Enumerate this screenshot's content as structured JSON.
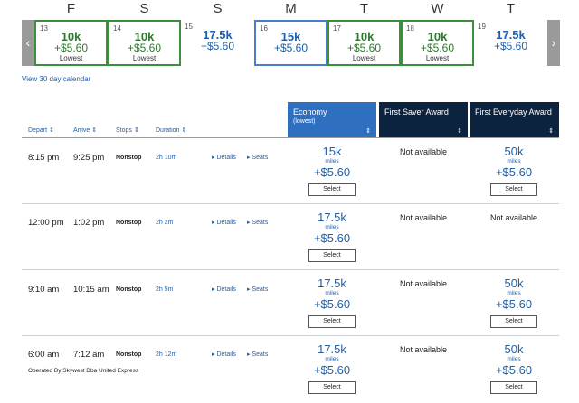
{
  "day_letters": [
    "F",
    "S",
    "S",
    "M",
    "T",
    "W",
    "T"
  ],
  "calendar": [
    {
      "day": "13",
      "miles": "10k",
      "fee": "+$5.60",
      "note": "Lowest",
      "state": "lowest"
    },
    {
      "day": "14",
      "miles": "10k",
      "fee": "+$5.60",
      "note": "Lowest",
      "state": "lowest"
    },
    {
      "day": "15",
      "miles": "17.5k",
      "fee": "+$5.60",
      "note": "",
      "state": "normal"
    },
    {
      "day": "16",
      "miles": "15k",
      "fee": "+$5.60",
      "note": "",
      "state": "selected"
    },
    {
      "day": "17",
      "miles": "10k",
      "fee": "+$5.60",
      "note": "Lowest",
      "state": "lowest"
    },
    {
      "day": "18",
      "miles": "10k",
      "fee": "+$5.60",
      "note": "Lowest",
      "state": "lowest"
    },
    {
      "day": "19",
      "miles": "17.5k",
      "fee": "+$5.60",
      "note": "",
      "state": "normal"
    }
  ],
  "nav": {
    "prev": "‹",
    "next": "›"
  },
  "view_calendar_link": "View 30 day calendar",
  "sort_columns": {
    "depart": "Depart ⇕",
    "arrive": "Arrive ⇕",
    "stops": "Stops ⇕",
    "duration": "Duration ⇕"
  },
  "fare_columns": {
    "economy": {
      "label": "Economy",
      "sub": "(lowest)",
      "caret": "⇕"
    },
    "saver": {
      "label": "First Saver Award",
      "caret": "⇕"
    },
    "everyday": {
      "label": "First Everyday Award",
      "caret": "⇕"
    }
  },
  "flights": [
    {
      "depart": "8:15 pm",
      "arrive": "9:25 pm",
      "stops": "Nonstop",
      "duration": "2h 10m",
      "details": "▸ Details",
      "seats": "▸ Seats",
      "operated": "",
      "economy": {
        "miles": "15k",
        "unit": "miles",
        "fee": "+$5.60",
        "select": "Select"
      },
      "saver": {
        "text": "Not available"
      },
      "everyday": {
        "miles": "50k",
        "unit": "miles",
        "fee": "+$5.60",
        "select": "Select"
      }
    },
    {
      "depart": "12:00 pm",
      "arrive": "1:02 pm",
      "stops": "Nonstop",
      "duration": "2h 2m",
      "details": "▸ Details",
      "seats": "▸ Seats",
      "operated": "",
      "economy": {
        "miles": "17.5k",
        "unit": "miles",
        "fee": "+$5.60",
        "select": "Select"
      },
      "saver": {
        "text": "Not available"
      },
      "everyday": {
        "text": "Not available"
      }
    },
    {
      "depart": "9:10 am",
      "arrive": "10:15 am",
      "stops": "Nonstop",
      "duration": "2h 5m",
      "details": "▸ Details",
      "seats": "▸ Seats",
      "operated": "",
      "economy": {
        "miles": "17.5k",
        "unit": "miles",
        "fee": "+$5.60",
        "select": "Select"
      },
      "saver": {
        "text": "Not available"
      },
      "everyday": {
        "miles": "50k",
        "unit": "miles",
        "fee": "+$5.60",
        "select": "Select"
      }
    },
    {
      "depart": "6:00 am",
      "arrive": "7:12 am",
      "stops": "Nonstop",
      "duration": "2h 12m",
      "details": "▸ Details",
      "seats": "▸ Seats",
      "operated": "Operated By Skywest Dba United Express",
      "economy": {
        "miles": "17.5k",
        "unit": "miles",
        "fee": "+$5.60",
        "select": "Select"
      },
      "saver": {
        "text": "Not available"
      },
      "everyday": {
        "miles": "50k",
        "unit": "miles",
        "fee": "+$5.60",
        "select": "Select"
      }
    }
  ]
}
